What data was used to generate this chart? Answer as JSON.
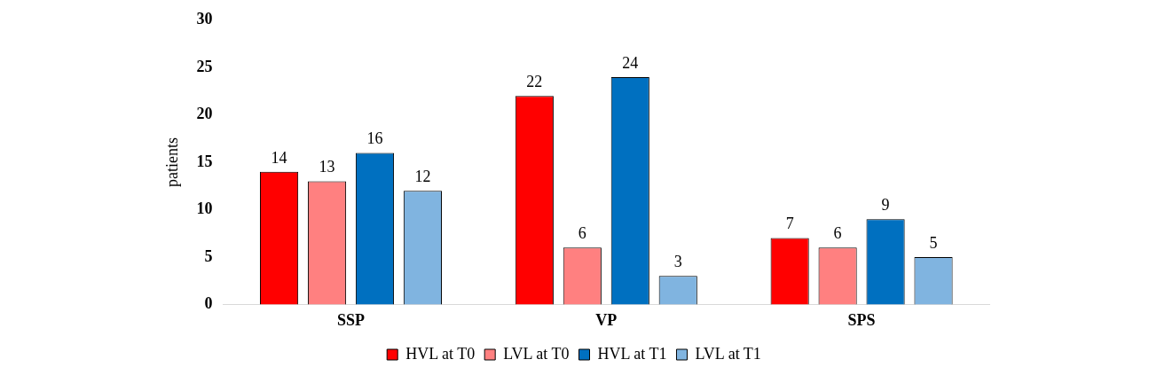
{
  "chart_data": {
    "type": "bar",
    "ylabel": "patients",
    "categories": [
      "SSP",
      "VP",
      "SPS"
    ],
    "series": [
      {
        "name": "HVL at T0",
        "color": "#ff0000",
        "values": [
          14,
          22,
          7
        ]
      },
      {
        "name": "LVL at T0",
        "color": "#ff8080",
        "values": [
          13,
          6,
          6
        ]
      },
      {
        "name": "HVL at T1",
        "color": "#0070c0",
        "values": [
          16,
          24,
          9
        ]
      },
      {
        "name": "LVL at T1",
        "color": "#80b4e0",
        "values": [
          12,
          3,
          5
        ]
      }
    ],
    "ylim": [
      0,
      30
    ],
    "yticks": [
      0,
      5,
      10,
      15,
      20,
      25,
      30
    ],
    "grid": false,
    "legend": "bottom",
    "data_labels": true
  }
}
